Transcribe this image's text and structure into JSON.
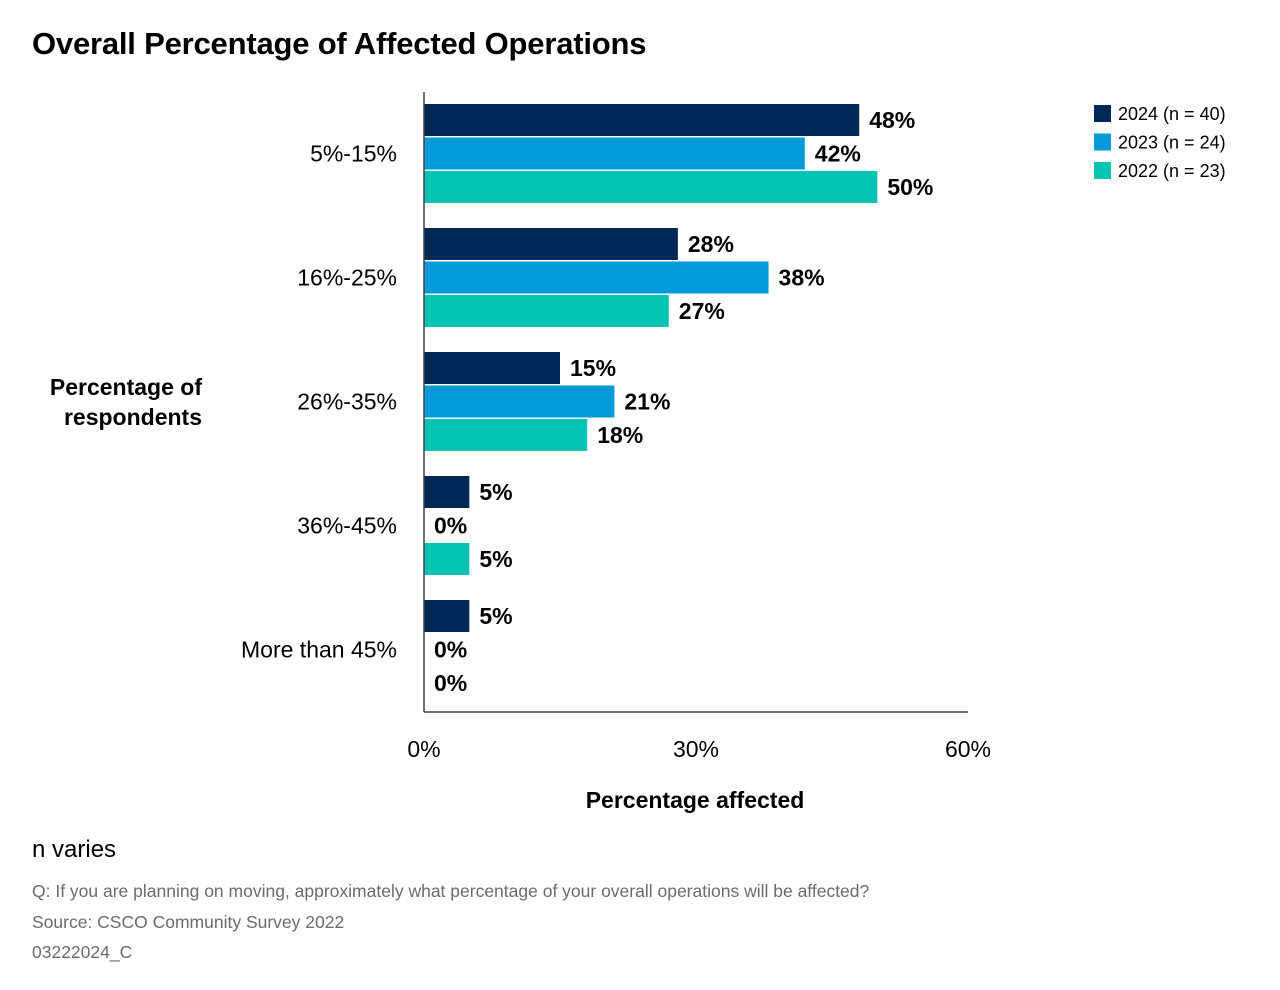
{
  "chart_data": {
    "type": "bar",
    "orientation": "horizontal",
    "title": "Overall Percentage of Affected Operations",
    "ylabel": "Percentage of\nrespondents",
    "xlabel": "Percentage affected",
    "categories": [
      "5%-15%",
      "16%-25%",
      "26%-35%",
      "36%-45%",
      "More than 45%"
    ],
    "series": [
      {
        "name": "2024 (n = 40)",
        "color": "#002856",
        "values": [
          48,
          28,
          15,
          5,
          5
        ],
        "labels": [
          "48%",
          "28%",
          "15%",
          "5%",
          "5%"
        ]
      },
      {
        "name": "2023 (n = 24)",
        "color": "#009ad9",
        "values": [
          42,
          38,
          21,
          0,
          0
        ],
        "labels": [
          "42%",
          "38%",
          "21%",
          "0%",
          "0%"
        ]
      },
      {
        "name": "2022 (n = 23)",
        "color": "#05c3b3",
        "values": [
          50,
          27,
          18,
          5,
          0
        ],
        "labels": [
          "50%",
          "27%",
          "18%",
          "5%",
          "0%"
        ]
      }
    ],
    "xlim": [
      0,
      60
    ],
    "xticks": [
      0,
      30,
      60
    ],
    "xtick_labels": [
      "0%",
      "30%",
      "60%"
    ],
    "grid": false,
    "legend_position": "top-right"
  },
  "footnote": "n varies",
  "question": "Q: If you are planning on moving, approximately what percentage of your overall operations will be affected?",
  "source": "Source: CSCO Community Survey 2022",
  "code": "03222024_C"
}
